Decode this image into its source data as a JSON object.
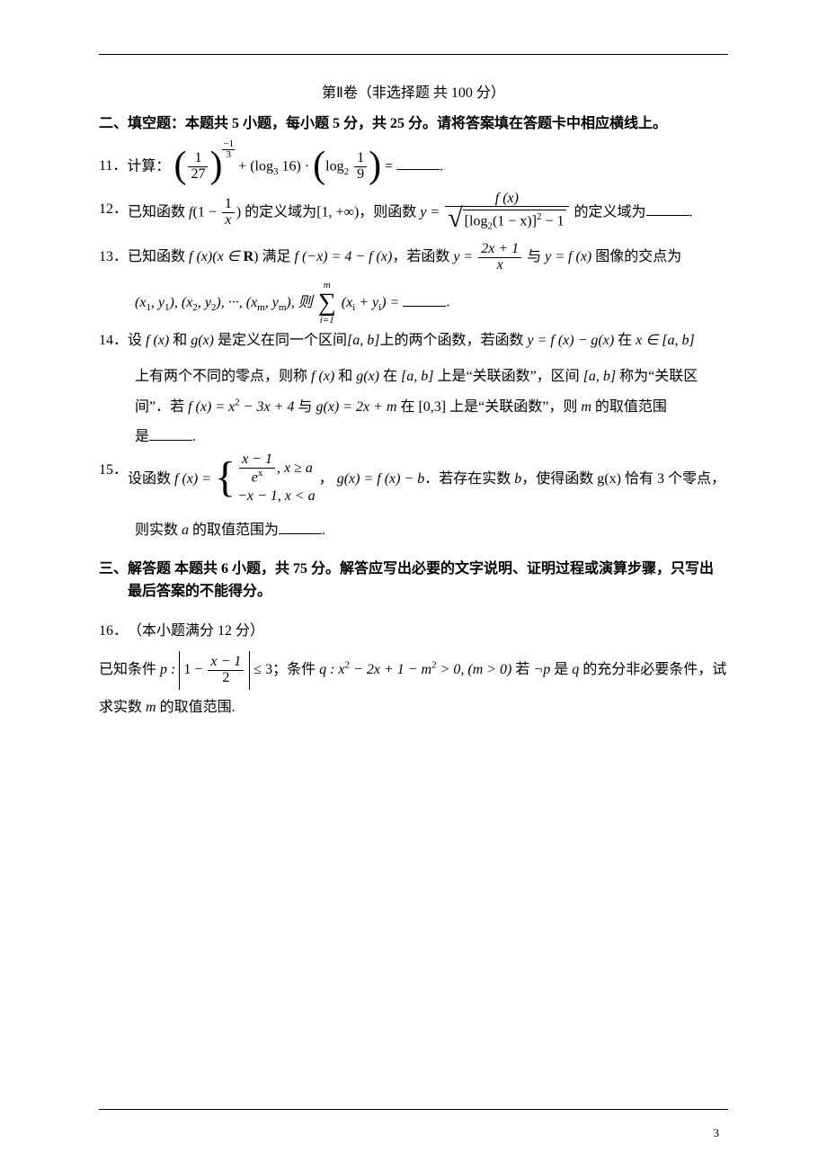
{
  "page": {
    "number": "3",
    "header_title": "第Ⅱ卷（非选择题 共 100 分）",
    "section2": "二、填空题：本题共 5 小题，每小题 5 分，共 25 分。请将答案填在答题卡中相应横线上。",
    "section3_l1": "三、解答题 本题共 6 小题，共 75 分。解答应写出必要的文字说明、证明过程或演算步骤，只写出",
    "section3_l2": "最后答案的不能得分。"
  },
  "q11": {
    "num": "11．",
    "lead": "计算：",
    "f1n": "1",
    "f1d": "27",
    "exp_sign": "−",
    "exp_n": "1",
    "exp_d": "3",
    "plus": " + ",
    "log1": "(log",
    "log1_b": "3",
    "log1_arg": " 16)",
    "dot": "·",
    "log2": "log",
    "log2_b": "2",
    "f2n": "1",
    "f2d": "9",
    "eq": " = ",
    "end": "."
  },
  "q12": {
    "num": "12．",
    "t1": "已知函数 ",
    "f": "f",
    "lp": "(1 − ",
    "fr_n": "1",
    "fr_d": "x",
    "rp": ")",
    "t2": " 的定义域为",
    "dom": "[1, +∞)",
    "t3": "，则函数 ",
    "y": "y = ",
    "top": "f (x)",
    "rad_inner_a": "[log",
    "rad_b": "2",
    "rad_inner_b": "(1 − x)]",
    "rad_sq": "2",
    "rad_inner_c": " − 1",
    "t4": " 的定义域为",
    "end": "."
  },
  "q13": {
    "num": "13．",
    "t1": "已知函数 ",
    "fx": "f (x)(x ∈ ",
    "R": "R",
    "rp": ")",
    "t2": " 满足 ",
    "eq1": "f (−x) = 4 − f (x)",
    "t3": "，若函数 ",
    "y": "y = ",
    "fr_n": "2x + 1",
    "fr_d": "x",
    "t4": " 与 ",
    "yfx": "y = f (x)",
    "t5": " 图像的交点为",
    "pts": "(x",
    "s1": "1",
    "pt1b": ", y",
    "pt1c": "), (x",
    "s2": "2",
    "pt2b": ", y",
    "pt2c": "), ···, (x",
    "sm": "m",
    "ptmb": ", y",
    "ptmc": "),  则",
    "sum_top": "m",
    "sum_bot": "i=1",
    "sum_arg": "(x",
    "si": "i",
    "sum_arg2": " + y",
    "sum_arg3": ") = ",
    "end": "."
  },
  "q14": {
    "num": "14．",
    "t1": "设 ",
    "fx": "f (x)",
    "t2": " 和 ",
    "gx": "g(x)",
    "t3": " 是定义在同一个区间",
    "ab": "[a, b]",
    "t4": "上的两个函数，若函数 ",
    "yfg": "y = f (x) − g(x)",
    "t5": " 在 ",
    "xin": "x ∈ [a, b]",
    "l2a": "上有两个不同的零点，则称 ",
    "l2b": " 和 ",
    "l2c": " 在 ",
    "l2d": " 上是“关联函数”，区间 ",
    "l2e": " 称为“关联区",
    "l3a": "间”．若 ",
    "fdef": "f (x) = x",
    "sq": "2",
    "fdef2": " − 3x + 4",
    "l3b": " 与 ",
    "gdef": "g(x) = 2x + m",
    "l3c": " 在 ",
    "int": "[0,3]",
    "l3d": " 上是“关联函数”，则 ",
    "m": "m",
    "l3e": " 的取值范围",
    "l4": "是",
    "end": "."
  },
  "q15": {
    "num": "15．",
    "t1": "设函数 ",
    "fx": "f (x) = ",
    "c1a": "x − 1",
    "c1b": "e",
    "c1x": "x",
    "c1c": ", x ≥ a",
    "c2": "−x − 1, x < a",
    "t2": "， ",
    "gx": "g(x) = f (x) − b",
    "t3": "．若存在实数 ",
    "b": "b",
    "t4": "，使得函数 ",
    "gx2": "g(x)",
    "t5": " 恰有 3 个零点，",
    "l2a": "则实数 ",
    "a": "a",
    "l2b": " 的取值范围为",
    "end": "."
  },
  "q16": {
    "num": "16．",
    "t1": "（本小题满分 12 分）",
    "l1": "已知条件 ",
    "p": "p : ",
    "abs_a": "1 − ",
    "abs_n": "x − 1",
    "abs_d": "2",
    "le": " ≤ 3",
    "l2": "；条件 ",
    "q": "q : x",
    "sq": "2",
    "qrest": " − 2x + 1 − m",
    "qrest2": " > 0, (m > 0)",
    "l3": "  若 ",
    "neg": "¬p",
    "l4": " 是 ",
    "qv": "q",
    "l5": " 的充分非必要条件，试",
    "l6": "求实数 ",
    "m": "m",
    "l7": " 的取值范围."
  }
}
